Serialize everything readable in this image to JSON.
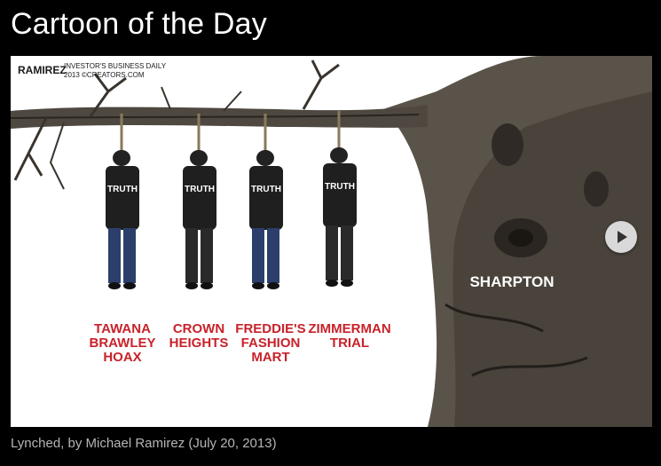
{
  "widget": {
    "title": "Cartoon of the Day",
    "caption": "Lynched, by Michael Ramirez (July 20, 2013)"
  },
  "cartoon": {
    "signature": "RAMIREZ",
    "credit_line1": "INVESTOR'S BUSINESS DAILY",
    "credit_line2": "2013 ©CREATORS.COM",
    "tree_label": "SHARPTON",
    "figures": [
      {
        "shirt": "TRUTH",
        "caption_lines": [
          "TAWANA",
          "BRAWLEY",
          "HOAX"
        ]
      },
      {
        "shirt": "TRUTH",
        "caption_lines": [
          "CROWN",
          "HEIGHTS"
        ]
      },
      {
        "shirt": "TRUTH",
        "caption_lines": [
          "FREDDIE'S",
          "FASHION",
          "MART"
        ]
      },
      {
        "shirt": "TRUTH",
        "caption_lines": [
          "ZIMMERMAN",
          "TRIAL"
        ]
      }
    ]
  },
  "colors": {
    "caption_red": "#c8222a",
    "ink": "#1a1a1a",
    "jeans": "#2c3e6b"
  },
  "controls": {
    "next_icon": "play-arrow-icon"
  }
}
